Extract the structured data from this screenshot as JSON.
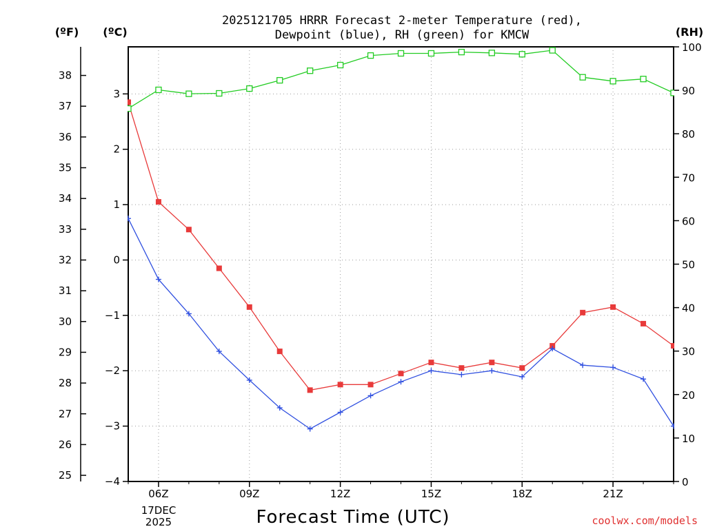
{
  "chart_data": {
    "type": "line",
    "title_line1": "2025121705 HRRR Forecast 2-meter Temperature (red),",
    "title_line2": "Dewpoint (blue), RH (green) for KMCW",
    "xlabel": "Forecast Time (UTC)",
    "credit": "coolwx.com/models",
    "unit_f": "(ºF)",
    "unit_c": "(ºC)",
    "unit_rh": "(RH)",
    "date_line1": "17DEC",
    "date_line2": "2025",
    "x_hours": [
      5,
      6,
      7,
      8,
      9,
      10,
      11,
      12,
      13,
      14,
      15,
      16,
      17,
      18,
      19,
      20,
      21,
      22,
      23
    ],
    "x_ticks": [
      {
        "hour": 6,
        "label": "06Z"
      },
      {
        "hour": 9,
        "label": "09Z"
      },
      {
        "hour": 12,
        "label": "12Z"
      },
      {
        "hour": 15,
        "label": "15Z"
      },
      {
        "hour": 18,
        "label": "18Z"
      },
      {
        "hour": 21,
        "label": "21Z"
      }
    ],
    "xlim": [
      5,
      23
    ],
    "ylim_c": [
      -4.0,
      3.85
    ],
    "ylim_rh": [
      0,
      100
    ],
    "ticks_c": [
      -4,
      -3,
      -2,
      -1,
      0,
      1,
      2,
      3
    ],
    "tick_labels_c": [
      "−4",
      "−3",
      "−2",
      "−1",
      "0",
      "1",
      "2",
      "3"
    ],
    "ticks_f": [
      25,
      26,
      27,
      28,
      29,
      30,
      31,
      32,
      33,
      34,
      35,
      36,
      37,
      38
    ],
    "ticks_rh": [
      0,
      10,
      20,
      30,
      40,
      50,
      60,
      70,
      80,
      90,
      100
    ],
    "series": [
      {
        "name": "Temperature",
        "color": "#e83a3a",
        "marker": "square-filled",
        "axis": "c",
        "values": [
          2.85,
          1.05,
          0.55,
          -0.15,
          -0.85,
          -1.65,
          -2.35,
          -2.25,
          -2.25,
          -2.05,
          -1.85,
          -1.95,
          -1.85,
          -1.95,
          -1.55,
          -0.95,
          -0.85,
          -1.15,
          -1.55
        ]
      },
      {
        "name": "Dewpoint",
        "color": "#3050e0",
        "marker": "plus",
        "axis": "c",
        "values": [
          0.75,
          -0.35,
          -0.97,
          -1.65,
          -2.17,
          -2.67,
          -3.05,
          -2.75,
          -2.45,
          -2.2,
          -2.0,
          -2.07,
          -2.0,
          -2.11,
          -1.6,
          -1.9,
          -1.94,
          -2.15,
          -3.0
        ]
      },
      {
        "name": "RH",
        "color": "#22cc22",
        "marker": "square-open",
        "axis": "rh",
        "values": [
          85.8,
          90.1,
          89.2,
          89.3,
          90.4,
          92.3,
          94.5,
          95.8,
          98.0,
          98.5,
          98.5,
          98.8,
          98.6,
          98.3,
          99.2,
          93.0,
          92.1,
          92.6,
          89.4
        ]
      }
    ]
  }
}
